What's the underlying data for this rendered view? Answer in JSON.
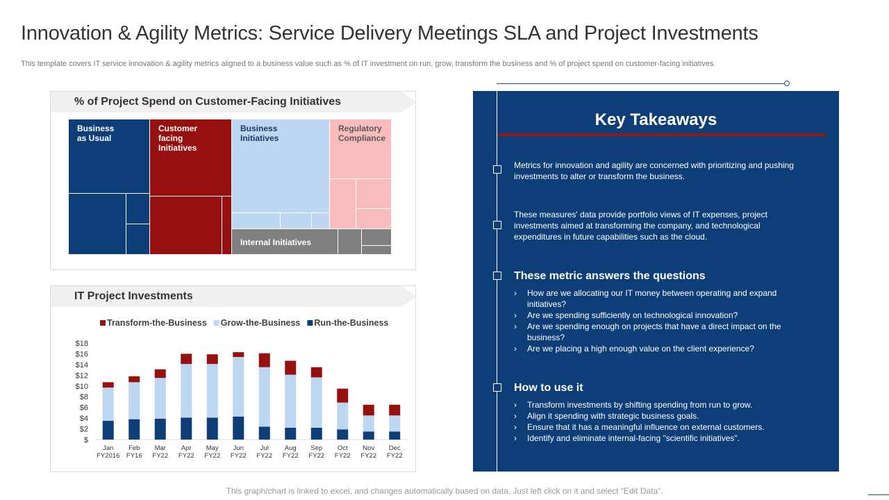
{
  "page": {
    "title": "Innovation & Agility Metrics: Service Delivery Meetings SLA and Project Investments",
    "subtitle": "This template covers IT  service innovation &  agility metrics aligned to a business value such as % of IT  investment on run,  grow, transform the business and % of project spend on customer-facing initiatives.",
    "footer": "This graph/chart is linked to excel, and changes automatically based on data. Just left click on it and select “Edit Data”."
  },
  "colors": {
    "navy": "#0e3e78",
    "dark_red": "#961010",
    "light_blue": "#bdd7f2",
    "pink": "#f8bcbc",
    "gray": "#808080",
    "accent_line": "#8b1a1a"
  },
  "treemap_panel": {
    "title": "% of Project Spend on  Customer-Facing Initiatives",
    "tiles": [
      {
        "label": "Business\nas Usual",
        "color": "#0e3e78"
      },
      {
        "label": "Customer\nfacing\nInitiatives",
        "color": "#961010"
      },
      {
        "label": "Business\nInitiatives",
        "color": "#bdd7f2"
      },
      {
        "label": "Regulatory\nCompliance",
        "color": "#f8bcbc"
      },
      {
        "label": "Internal Initiatives",
        "color": "#808080"
      }
    ]
  },
  "chart_panel": {
    "title": "IT Project Investments"
  },
  "chart_data": {
    "type": "bar",
    "stacked": true,
    "title": "IT Project Investments",
    "categories": [
      "Jan\nFY2016",
      "Feb\nFY16",
      "Mar\nFY22",
      "Apr\nFY22",
      "May\nFY22",
      "Jun\nFY22",
      "Jul\nFY22",
      "Aug\nFY22",
      "Sep\nFY22",
      "Oct\nFY22",
      "Nov\nFY22",
      "Dec\nFY22"
    ],
    "series": [
      {
        "name": "Run-the-Business",
        "color": "#0e3e78",
        "values": [
          3.5,
          3.8,
          3.9,
          4.1,
          4.1,
          4.3,
          2.4,
          2.2,
          2.2,
          1.9,
          1.5,
          1.5
        ]
      },
      {
        "name": "Grow-the-Business",
        "color": "#bdd7f2",
        "values": [
          6.2,
          6.9,
          7.6,
          10.0,
          10.0,
          11.1,
          11.1,
          9.9,
          9.4,
          5.0,
          3.0,
          3.0
        ]
      },
      {
        "name": "Transform-the-Business",
        "color": "#961010",
        "values": [
          1.0,
          1.1,
          1.6,
          1.9,
          1.8,
          0.9,
          2.6,
          2.6,
          1.9,
          2.6,
          2.0,
          2.0
        ]
      }
    ],
    "legend_order": [
      "Transform-the-Business",
      "Grow-the-Business",
      "Run-the-Business"
    ],
    "legend_position": "top",
    "y_ticks": [
      "$",
      "$2",
      "$4",
      "$6",
      "$8",
      "$10",
      "$12",
      "$14",
      "$16",
      "$18"
    ],
    "ylim": [
      0,
      18
    ],
    "xlabel": "",
    "ylabel": "",
    "grid": false
  },
  "takeaways": {
    "title": "Key Takeaways",
    "para1": "Metrics for innovation  and agility are concerned with prioritizing and pushing investments to alter or transform the business.",
    "para2": "These measures' data provide  portfolio views of IT expenses, project investments aimed at transforming  the company, and technological expenditures in future capabilities such as the cloud.",
    "questions_heading": "These metric answers the questions",
    "questions": [
      "How are we allocating our IT money between operating and expand initiatives?",
      "Are we spending sufficiently on technological innovation?",
      "Are we spending enough  on projects that have a direct impact on the business?",
      "Are we placing a high enough value on the client experience?"
    ],
    "howto_heading": "How to use it",
    "howto": [
      "Transform investments  by shifting spending from run to grow.",
      "Align it spending with strategic business goals.",
      "Ensure that it has a meaningful influence on external customers.",
      "Identify and eliminate internal-facing \"scientific initiatives\"."
    ]
  }
}
